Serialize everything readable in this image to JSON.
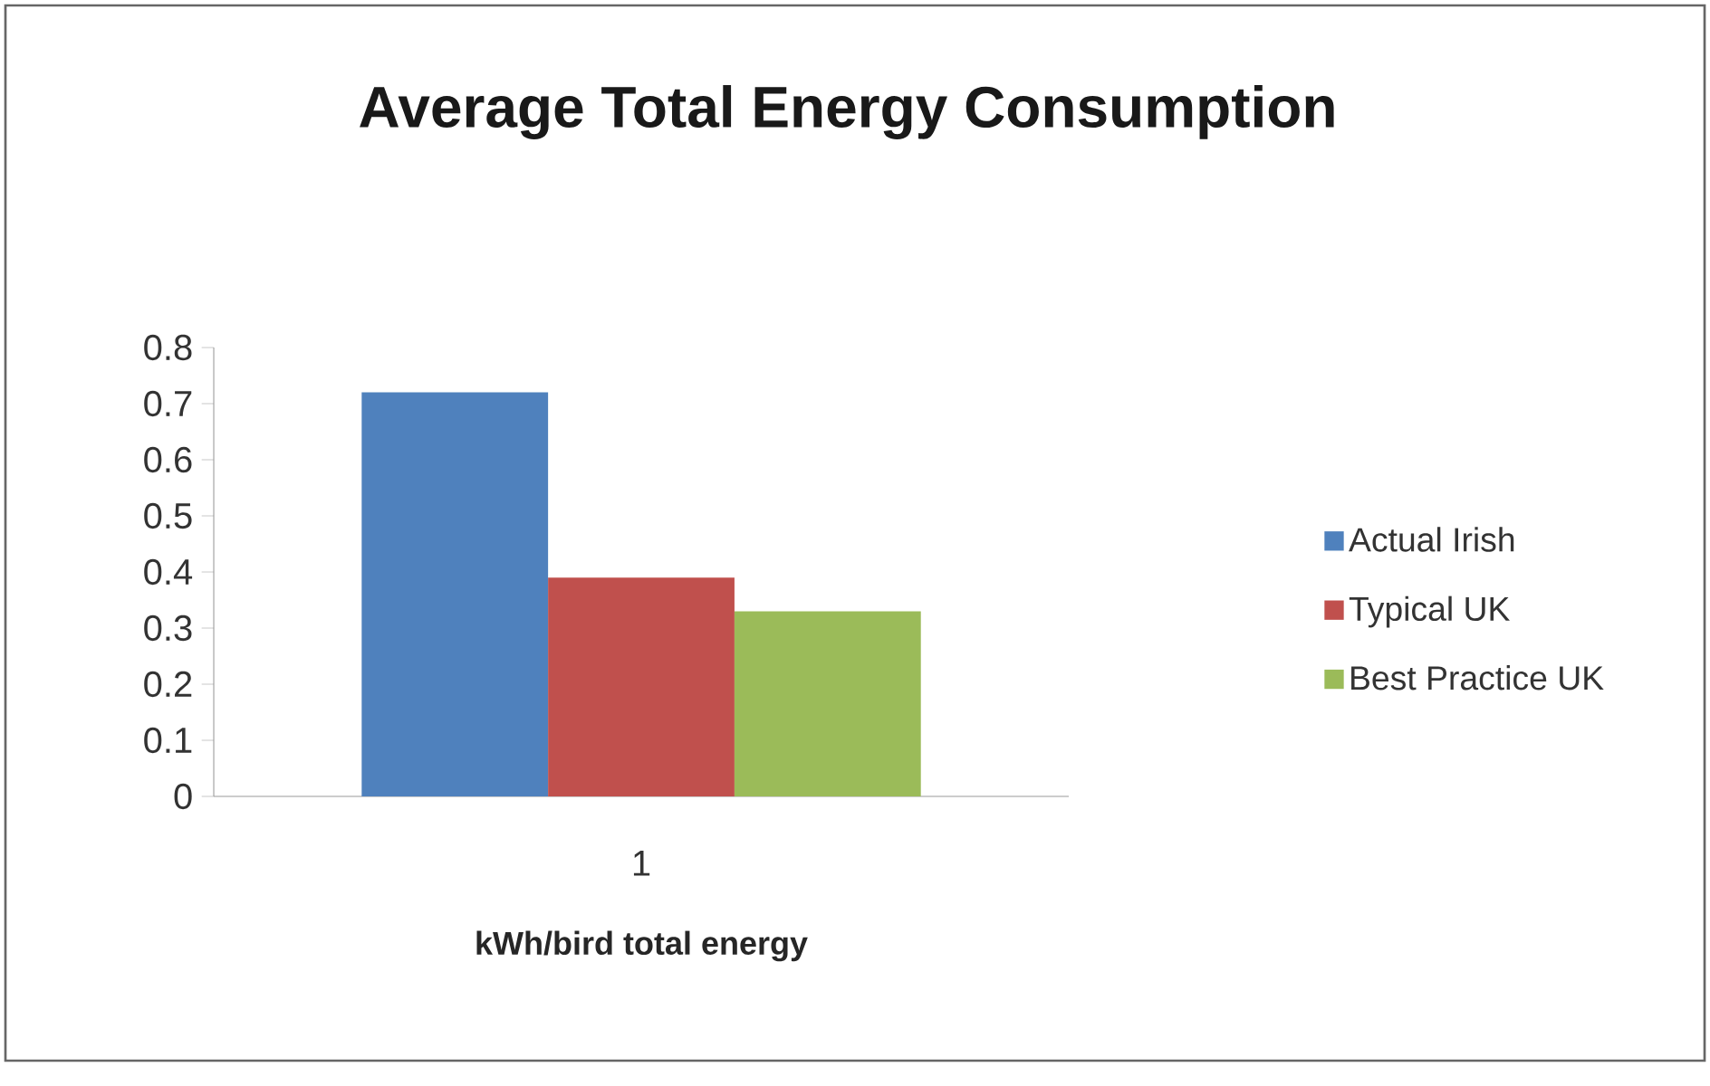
{
  "chart_data": {
    "type": "bar",
    "title": "Average Total Energy Consumption",
    "xlabel": "kWh/bird total energy",
    "categories": [
      "1"
    ],
    "series": [
      {
        "name": "Actual Irish",
        "color": "#4f81bd",
        "values": [
          0.72
        ]
      },
      {
        "name": "Typical UK",
        "color": "#c0504d",
        "values": [
          0.39
        ]
      },
      {
        "name": "Best Practice UK",
        "color": "#9bbb59",
        "values": [
          0.33
        ]
      }
    ],
    "ylim": [
      0,
      0.8
    ],
    "yticks": [
      0,
      0.1,
      0.2,
      0.3,
      0.4,
      0.5,
      0.6,
      0.7,
      0.8
    ],
    "legend": "right"
  }
}
